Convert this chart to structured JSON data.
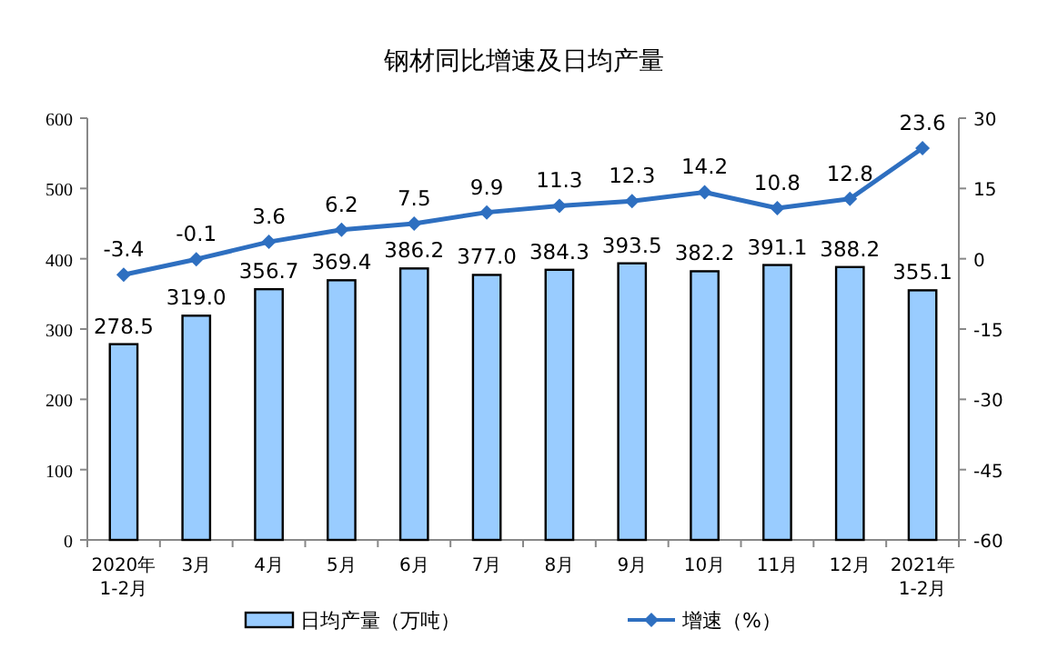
{
  "chart_data": {
    "type": "bar",
    "title": "钢材同比增速及日均产量",
    "categories": [
      "2020年\n1-2月",
      "3月",
      "4月",
      "5月",
      "6月",
      "7月",
      "8月",
      "9月",
      "10月",
      "11月",
      "12月",
      "2021年\n1-2月"
    ],
    "series": [
      {
        "name": "日均产量（万吨）",
        "color": "#99ccff",
        "values": [
          278.5,
          319.0,
          356.7,
          369.4,
          386.2,
          377.0,
          384.3,
          393.5,
          382.2,
          391.1,
          388.2,
          355.1
        ],
        "value_labels": [
          "278.5",
          "319.0",
          "356.7",
          "369.4",
          "386.2",
          "377.0",
          "384.3",
          "393.5",
          "382.2",
          "391.1",
          "388.2",
          "355.1"
        ]
      },
      {
        "name": "增速（%）",
        "type": "line",
        "axis": "y2",
        "color": "#2e6fc0",
        "marker": "diamond",
        "values": [
          -3.4,
          -0.1,
          3.6,
          6.2,
          7.5,
          9.9,
          11.3,
          12.3,
          14.2,
          10.8,
          12.8,
          23.6
        ],
        "value_labels": [
          "-3.4",
          "-0.1",
          "3.6",
          "6.2",
          "7.5",
          "9.9",
          "11.3",
          "12.3",
          "14.2",
          "10.8",
          "12.8",
          "23.6"
        ]
      }
    ],
    "ylim": [
      0,
      600
    ],
    "yticks": [
      0,
      100,
      200,
      300,
      400,
      500,
      600
    ],
    "y2lim": [
      -60,
      30
    ],
    "y2ticks": [
      -60,
      -45,
      -30,
      -15,
      0,
      15,
      30
    ],
    "grid": false,
    "legend": "bottom"
  }
}
